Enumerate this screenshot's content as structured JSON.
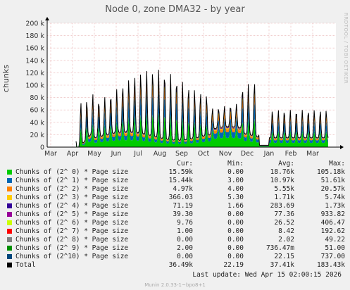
{
  "chart_data": {
    "type": "area",
    "title": "Node 0, zone DMA32 - by year",
    "ylabel": "chunks",
    "ylim": [
      0,
      200000
    ],
    "yticks": [
      "0",
      "20 k",
      "40 k",
      "60 k",
      "80 k",
      "100 k",
      "120 k",
      "140 k",
      "160 k",
      "180 k",
      "200 k"
    ],
    "xticks": [
      "Mar",
      "Apr",
      "May",
      "Jun",
      "Jul",
      "Aug",
      "Sep",
      "Oct",
      "Nov",
      "Dec",
      "Jan",
      "Feb",
      "Mar"
    ],
    "grid": true,
    "stacked": true,
    "series": [
      {
        "name": "Chunks of (2^ 0) * Page size",
        "color": "#00cc00",
        "cur": "15.59k",
        "min": "0.00",
        "avg": "18.76k",
        "max": "105.18k"
      },
      {
        "name": "Chunks of (2^ 1) * Page size",
        "color": "#0066b3",
        "cur": "15.44k",
        "min": "3.00",
        "avg": "10.97k",
        "max": "51.61k"
      },
      {
        "name": "Chunks of (2^ 2) * Page size",
        "color": "#ff8000",
        "cur": "4.97k",
        "min": "4.00",
        "avg": "5.55k",
        "max": "20.57k"
      },
      {
        "name": "Chunks of (2^ 3) * Page size",
        "color": "#ffcc00",
        "cur": "366.03",
        "min": "5.30",
        "avg": "1.71k",
        "max": "5.74k"
      },
      {
        "name": "Chunks of (2^ 4) * Page size",
        "color": "#330099",
        "cur": "71.19",
        "min": "1.66",
        "avg": "283.69",
        "max": "1.73k"
      },
      {
        "name": "Chunks of (2^ 5) * Page size",
        "color": "#990099",
        "cur": "39.30",
        "min": "0.00",
        "avg": "77.36",
        "max": "933.82"
      },
      {
        "name": "Chunks of (2^ 6) * Page size",
        "color": "#ccff00",
        "cur": "9.76",
        "min": "0.00",
        "avg": "26.52",
        "max": "406.47"
      },
      {
        "name": "Chunks of (2^ 7) * Page size",
        "color": "#ff0000",
        "cur": "1.00",
        "min": "0.00",
        "avg": "8.42",
        "max": "192.62"
      },
      {
        "name": "Chunks of (2^ 8) * Page size",
        "color": "#808080",
        "cur": "0.00",
        "min": "0.00",
        "avg": "2.02",
        "max": "49.22"
      },
      {
        "name": "Chunks of (2^ 9) * Page size",
        "color": "#008f00",
        "cur": "2.00",
        "min": "0.00",
        "avg": "736.47m",
        "max": "51.00"
      },
      {
        "name": "Chunks of (2^10) * Page size",
        "color": "#00487d",
        "cur": "0.00",
        "min": "0.00",
        "avg": "22.15",
        "max": "737.00"
      },
      {
        "name": "Total",
        "color": "#000000",
        "cur": "36.49k",
        "min": "22.19",
        "avg": "37.41k",
        "max": "183.43k"
      }
    ],
    "columns": [
      "Cur:",
      "Min:",
      "Avg:",
      "Max:"
    ],
    "last_update": "Last update: Wed Apr 15 02:00:15 2026"
  },
  "side_text": "RRDTOOL / TOBI OETIKER",
  "footer": "Munin 2.0.33-1~bpo8+1"
}
